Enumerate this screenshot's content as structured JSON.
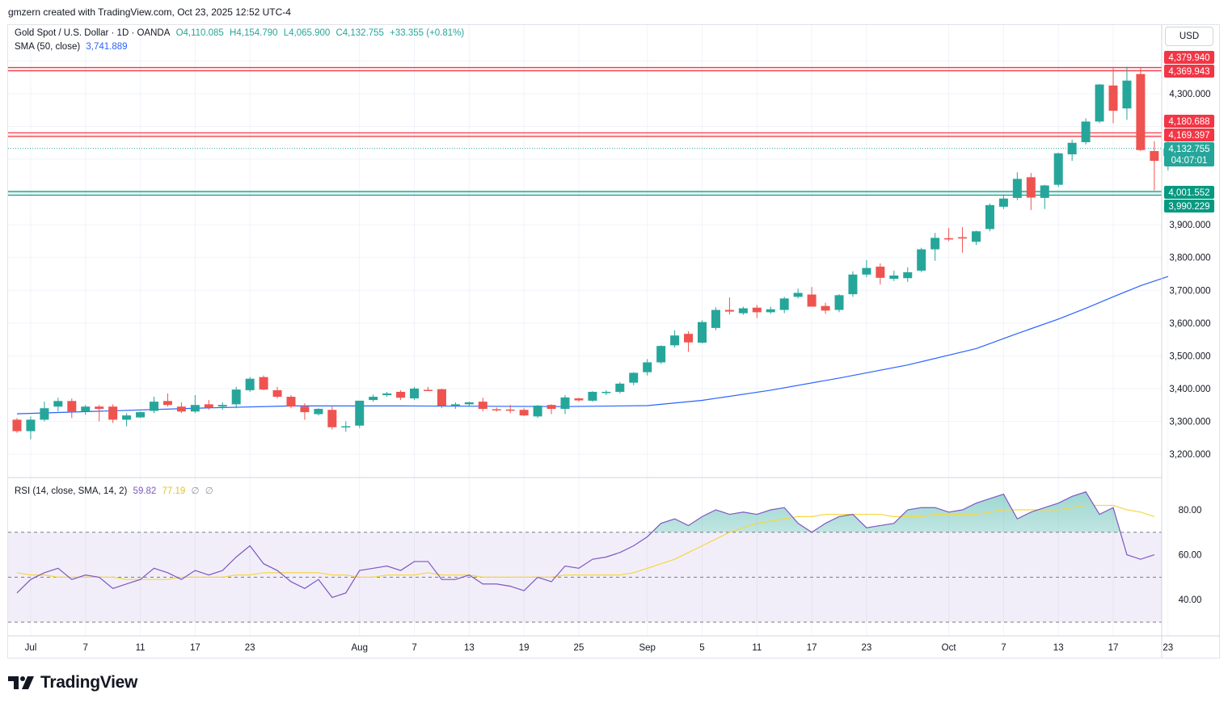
{
  "header": {
    "attribution": "gmzern created with TradingView.com, Oct 23, 2025 12:52 UTC-4"
  },
  "legend": {
    "symbol": "Gold Spot / U.S. Dollar · 1D · OANDA",
    "open": "O4,110.085",
    "high": "H4,154.790",
    "low": "L4,065.900",
    "close": "C4,132.755",
    "change": "+33.355 (+0.81%)",
    "sma_label": "SMA (50, close)",
    "sma_value": "3,741.889",
    "rsi_label": "RSI (14, close, SMA, 14, 2)",
    "rsi_value": "59.82",
    "rsi_ma_value": "77.19",
    "rsi_extra1": "∅",
    "rsi_extra2": "∅"
  },
  "currency_button": "USD",
  "price_labels": {
    "r1": "4,379.940",
    "r2": "4,369.943",
    "r3": "4,180.688",
    "r4": "4,169.397",
    "last": "4,132.755",
    "countdown": "04:07:01",
    "s1": "4,001.552",
    "s2": "3,990.229"
  },
  "brand": "TradingView",
  "colors": {
    "up": "#26a69a",
    "down": "#ef5350",
    "sma": "#2962ff",
    "rsi": "#7e57c2",
    "rsi_ma": "#f5d742",
    "resistance": "#f23645",
    "support": "#089981"
  },
  "chart_data": [
    {
      "type": "candlestick",
      "symbol": "XAUUSD",
      "timeframe": "1D",
      "y_ticks": [
        3200,
        3300,
        3400,
        3500,
        3600,
        3700,
        3800,
        3900,
        4300
      ],
      "x_labels": [
        {
          "i": 1,
          "label": "Jul"
        },
        {
          "i": 5,
          "label": "7"
        },
        {
          "i": 9,
          "label": "11"
        },
        {
          "i": 13,
          "label": "17"
        },
        {
          "i": 17,
          "label": "23"
        },
        {
          "i": 25,
          "label": "Aug"
        },
        {
          "i": 29,
          "label": "7"
        },
        {
          "i": 33,
          "label": "13"
        },
        {
          "i": 37,
          "label": "19"
        },
        {
          "i": 41,
          "label": "25"
        },
        {
          "i": 46,
          "label": "Sep"
        },
        {
          "i": 50,
          "label": "5"
        },
        {
          "i": 54,
          "label": "11"
        },
        {
          "i": 58,
          "label": "17"
        },
        {
          "i": 62,
          "label": "23"
        },
        {
          "i": 68,
          "label": "Oct"
        },
        {
          "i": 72,
          "label": "7"
        },
        {
          "i": 76,
          "label": "13"
        },
        {
          "i": 80,
          "label": "17"
        },
        {
          "i": 84,
          "label": "23"
        }
      ],
      "ohlc": [
        [
          3305,
          3310,
          3265,
          3270
        ],
        [
          3270,
          3315,
          3245,
          3305
        ],
        [
          3305,
          3360,
          3300,
          3340
        ],
        [
          3345,
          3372,
          3330,
          3362
        ],
        [
          3362,
          3370,
          3310,
          3330
        ],
        [
          3330,
          3350,
          3320,
          3345
        ],
        [
          3345,
          3350,
          3300,
          3338
        ],
        [
          3345,
          3352,
          3295,
          3305
        ],
        [
          3305,
          3325,
          3285,
          3318
        ],
        [
          3312,
          3330,
          3310,
          3328
        ],
        [
          3332,
          3375,
          3325,
          3360
        ],
        [
          3362,
          3385,
          3345,
          3350
        ],
        [
          3345,
          3358,
          3325,
          3330
        ],
        [
          3330,
          3380,
          3325,
          3350
        ],
        [
          3352,
          3365,
          3335,
          3342
        ],
        [
          3345,
          3358,
          3335,
          3350
        ],
        [
          3352,
          3405,
          3340,
          3397
        ],
        [
          3395,
          3435,
          3390,
          3430
        ],
        [
          3435,
          3440,
          3395,
          3397
        ],
        [
          3395,
          3405,
          3370,
          3375
        ],
        [
          3375,
          3380,
          3340,
          3345
        ],
        [
          3345,
          3355,
          3305,
          3328
        ],
        [
          3322,
          3340,
          3318,
          3338
        ],
        [
          3335,
          3345,
          3275,
          3282
        ],
        [
          3282,
          3300,
          3268,
          3285
        ],
        [
          3287,
          3362,
          3280,
          3363
        ],
        [
          3365,
          3382,
          3360,
          3375
        ],
        [
          3380,
          3390,
          3375,
          3385
        ],
        [
          3390,
          3395,
          3365,
          3372
        ],
        [
          3370,
          3405,
          3365,
          3400
        ],
        [
          3396,
          3405,
          3392,
          3394
        ],
        [
          3398,
          3400,
          3340,
          3348
        ],
        [
          3348,
          3358,
          3338,
          3352
        ],
        [
          3352,
          3360,
          3345,
          3358
        ],
        [
          3360,
          3372,
          3330,
          3338
        ],
        [
          3337,
          3342,
          3330,
          3336
        ],
        [
          3336,
          3350,
          3325,
          3333
        ],
        [
          3335,
          3340,
          3316,
          3318
        ],
        [
          3315,
          3350,
          3310,
          3348
        ],
        [
          3350,
          3352,
          3322,
          3338
        ],
        [
          3338,
          3380,
          3322,
          3373
        ],
        [
          3370,
          3372,
          3360,
          3364
        ],
        [
          3363,
          3392,
          3360,
          3390
        ],
        [
          3388,
          3395,
          3380,
          3390
        ],
        [
          3390,
          3420,
          3385,
          3415
        ],
        [
          3418,
          3450,
          3410,
          3448
        ],
        [
          3450,
          3490,
          3440,
          3480
        ],
        [
          3480,
          3532,
          3475,
          3530
        ],
        [
          3532,
          3578,
          3525,
          3562
        ],
        [
          3567,
          3575,
          3512,
          3541
        ],
        [
          3540,
          3608,
          3538,
          3603
        ],
        [
          3585,
          3648,
          3578,
          3640
        ],
        [
          3640,
          3678,
          3626,
          3635
        ],
        [
          3630,
          3650,
          3625,
          3645
        ],
        [
          3647,
          3655,
          3615,
          3633
        ],
        [
          3633,
          3650,
          3628,
          3642
        ],
        [
          3640,
          3680,
          3630,
          3675
        ],
        [
          3680,
          3705,
          3675,
          3692
        ],
        [
          3687,
          3710,
          3655,
          3650
        ],
        [
          3652,
          3662,
          3628,
          3638
        ],
        [
          3640,
          3688,
          3633,
          3685
        ],
        [
          3688,
          3758,
          3680,
          3748
        ],
        [
          3748,
          3792,
          3740,
          3768
        ],
        [
          3772,
          3782,
          3718,
          3738
        ],
        [
          3735,
          3760,
          3728,
          3745
        ],
        [
          3737,
          3770,
          3725,
          3755
        ],
        [
          3760,
          3830,
          3755,
          3825
        ],
        [
          3825,
          3875,
          3790,
          3860
        ],
        [
          3859,
          3890,
          3850,
          3855
        ],
        [
          3862,
          3892,
          3815,
          3858
        ],
        [
          3848,
          3882,
          3838,
          3880
        ],
        [
          3887,
          3965,
          3880,
          3960
        ],
        [
          3955,
          3992,
          3948,
          3980
        ],
        [
          3982,
          4060,
          3975,
          4040
        ],
        [
          4045,
          4058,
          3945,
          3983
        ],
        [
          3982,
          4022,
          3948,
          4020
        ],
        [
          4022,
          4120,
          4015,
          4118
        ],
        [
          4115,
          4160,
          4095,
          4150
        ],
        [
          4152,
          4225,
          4145,
          4215
        ],
        [
          4215,
          4330,
          4210,
          4328
        ],
        [
          4325,
          4378,
          4210,
          4248
        ],
        [
          4255,
          4382,
          4220,
          4340
        ],
        [
          4360,
          4380,
          4125,
          4128
        ],
        [
          4125,
          4155,
          4005,
          4095
        ],
        [
          4110,
          4155,
          4066,
          4133
        ]
      ],
      "sma50_points": [
        [
          0,
          3323
        ],
        [
          13,
          3340
        ],
        [
          20,
          3347
        ],
        [
          28,
          3347
        ],
        [
          40,
          3345
        ],
        [
          46,
          3348
        ],
        [
          50,
          3364
        ],
        [
          55,
          3395
        ],
        [
          60,
          3432
        ],
        [
          65,
          3472
        ],
        [
          70,
          3522
        ],
        [
          73,
          3568
        ],
        [
          76,
          3612
        ],
        [
          78,
          3645
        ],
        [
          80,
          3680
        ],
        [
          82,
          3714
        ],
        [
          84,
          3742
        ]
      ],
      "horizontal_levels": [
        {
          "value": 4379.94,
          "kind": "resistance"
        },
        {
          "value": 4369.943,
          "kind": "resistance"
        },
        {
          "value": 4180.688,
          "kind": "resistance"
        },
        {
          "value": 4169.397,
          "kind": "resistance"
        },
        {
          "value": 4001.552,
          "kind": "support"
        },
        {
          "value": 3990.229,
          "kind": "support"
        }
      ],
      "last_price": 4132.755
    },
    {
      "type": "line",
      "name": "RSI",
      "y_ticks": [
        40,
        60,
        80
      ],
      "bands": {
        "upper": 70,
        "middle": 50,
        "lower": 30
      },
      "rsi": [
        43,
        49,
        52,
        54,
        49,
        51,
        50,
        45,
        47,
        49,
        54,
        52,
        49,
        53,
        51,
        53,
        59,
        64,
        56,
        53,
        48,
        45,
        49,
        41,
        43,
        53,
        54,
        55,
        53,
        57,
        57,
        49,
        49,
        51,
        47,
        47,
        46,
        44,
        50,
        48,
        55,
        54,
        58,
        59,
        61,
        64,
        68,
        74,
        76,
        73,
        77,
        80,
        78,
        79,
        78,
        80,
        81,
        74,
        70,
        74,
        77,
        78,
        72,
        73,
        74,
        80,
        81,
        81,
        79,
        80,
        83,
        85,
        87,
        76,
        79,
        81,
        83,
        86,
        88,
        78,
        81,
        60,
        58,
        60
      ],
      "rsi_ma": [
        52,
        51,
        51,
        50,
        50,
        50,
        50,
        50,
        49,
        49,
        49,
        49,
        50,
        50,
        50,
        50,
        51,
        51,
        52,
        52,
        52,
        52,
        52,
        51,
        51,
        50,
        50,
        51,
        51,
        51,
        52,
        51,
        51,
        51,
        50,
        50,
        50,
        50,
        50,
        50,
        51,
        51,
        51,
        51,
        51,
        52,
        54,
        56,
        58,
        61,
        64,
        67,
        70,
        72,
        74,
        75,
        76,
        77,
        77,
        78,
        78,
        78,
        78,
        78,
        77,
        77,
        77,
        78,
        78,
        78,
        78,
        79,
        80,
        80,
        80,
        80,
        80,
        81,
        82,
        82,
        82,
        80,
        79,
        77
      ]
    }
  ]
}
